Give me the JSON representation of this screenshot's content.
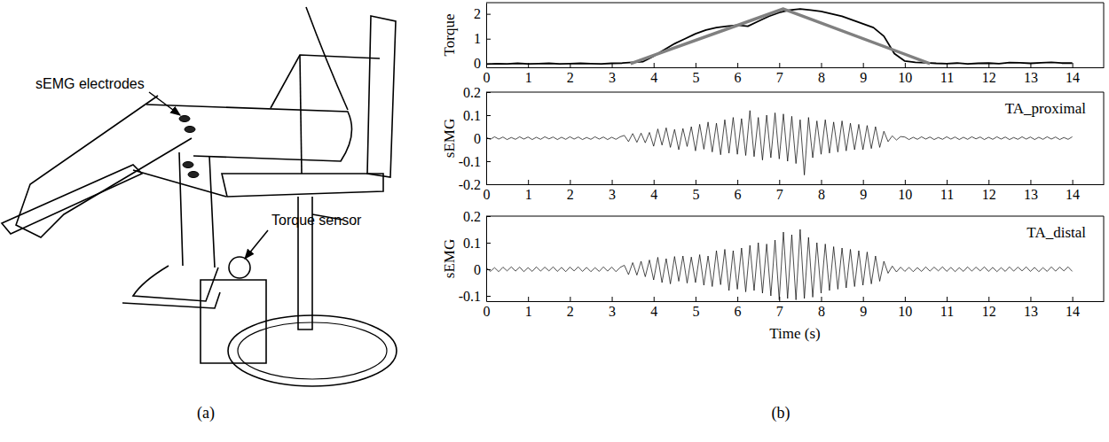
{
  "figure": {
    "panel_labels": [
      "(a)",
      "(b)"
    ]
  },
  "illustration": {
    "labels": [
      "sEMG electrodes",
      "Torque sensor"
    ]
  },
  "chart_data": [
    {
      "type": "line",
      "y_label": "Torque",
      "xlim": [
        0,
        14.75
      ],
      "ylim": [
        -0.15,
        2.45
      ],
      "xticks": [
        0,
        1,
        2,
        3,
        4,
        5,
        6,
        7,
        8,
        9,
        10,
        11,
        12,
        13,
        14
      ],
      "yticks": [
        0,
        1,
        2
      ],
      "series": [
        {
          "color": "#000000",
          "x": [
            0,
            0.25,
            0.5,
            0.75,
            1,
            1.25,
            1.5,
            1.75,
            2,
            2.25,
            2.5,
            2.75,
            3,
            3.25,
            3.5,
            3.75,
            4,
            4.25,
            4.5,
            4.75,
            5,
            5.25,
            5.5,
            5.75,
            6,
            6.25,
            6.5,
            6.75,
            7,
            7.25,
            7.5,
            7.75,
            8,
            8.25,
            8.5,
            8.75,
            9,
            9.25,
            9.5,
            9.75,
            10,
            10.25,
            10.5,
            10.75,
            11,
            11.25,
            11.5,
            11.75,
            12,
            12.25,
            12.5,
            12.75,
            13,
            13.25,
            13.5,
            13.75,
            14
          ],
          "values": [
            -0.02,
            0,
            -0.01,
            0.01,
            -0.01,
            0,
            0.01,
            -0.01,
            0,
            0.01,
            0,
            -0.01,
            0.01,
            0.02,
            0.05,
            0.08,
            0.3,
            0.55,
            0.8,
            1.0,
            1.2,
            1.35,
            1.45,
            1.5,
            1.55,
            1.5,
            1.7,
            1.9,
            2.05,
            2.15,
            2.2,
            2.15,
            2.1,
            2.0,
            1.9,
            1.75,
            1.6,
            1.45,
            1.1,
            0.4,
            0.1,
            0.05,
            0.03,
            0.01,
            0,
            0.02,
            -0.01,
            0.01,
            0.02,
            0,
            0.04,
            0.03,
            0.01,
            0.03,
            0.05,
            0.02,
            0.02
          ]
        },
        {
          "color": "#808080",
          "x": [
            3.45,
            7.1,
            10.6
          ],
          "values": [
            0,
            2.2,
            0
          ]
        }
      ]
    },
    {
      "type": "line",
      "y_label": "sEMG",
      "annotation": "TA_proximal",
      "xlim": [
        0,
        14.75
      ],
      "ylim": [
        -0.2,
        0.2
      ],
      "xticks": [
        0,
        1,
        2,
        3,
        4,
        5,
        6,
        7,
        8,
        9,
        10,
        11,
        12,
        13,
        14
      ],
      "yticks": [
        -0.2,
        -0.1,
        0,
        0.1,
        0.2
      ],
      "series": [
        {
          "color": "#000000",
          "x": [
            0,
            0.1,
            0.2,
            0.3,
            0.4,
            0.5,
            0.6,
            0.7,
            0.8,
            0.9,
            1,
            1.1,
            1.2,
            1.3,
            1.4,
            1.5,
            1.6,
            1.7,
            1.8,
            1.9,
            2,
            2.1,
            2.2,
            2.3,
            2.4,
            2.5,
            2.6,
            2.7,
            2.8,
            2.9,
            3,
            3.1,
            3.2,
            3.3,
            3.4,
            3.5,
            3.6,
            3.7,
            3.8,
            3.9,
            4,
            4.1,
            4.2,
            4.3,
            4.4,
            4.5,
            4.6,
            4.7,
            4.8,
            4.9,
            5,
            5.1,
            5.2,
            5.3,
            5.4,
            5.5,
            5.6,
            5.7,
            5.8,
            5.9,
            6,
            6.1,
            6.2,
            6.3,
            6.4,
            6.5,
            6.6,
            6.7,
            6.8,
            6.9,
            7,
            7.1,
            7.2,
            7.3,
            7.4,
            7.5,
            7.6,
            7.7,
            7.8,
            7.9,
            8,
            8.1,
            8.2,
            8.3,
            8.4,
            8.5,
            8.6,
            8.7,
            8.8,
            8.9,
            9,
            9.1,
            9.2,
            9.3,
            9.4,
            9.5,
            9.6,
            9.7,
            9.8,
            9.9,
            10,
            10.1,
            10.2,
            10.3,
            10.4,
            10.5,
            10.6,
            10.7,
            10.8,
            10.9,
            11,
            11.1,
            11.2,
            11.3,
            11.4,
            11.5,
            11.6,
            11.7,
            11.8,
            11.9,
            12,
            12.1,
            12.2,
            12.3,
            12.4,
            12.5,
            12.6,
            12.7,
            12.8,
            12.9,
            13,
            13.1,
            13.2,
            13.3,
            13.4,
            13.5,
            13.6,
            13.7,
            13.8,
            13.9,
            14
          ],
          "values": [
            0.004,
            -0.005,
            0.006,
            -0.004,
            0.005,
            -0.006,
            0.003,
            -0.005,
            0.006,
            -0.004,
            0.005,
            -0.006,
            0.004,
            -0.005,
            0.006,
            -0.003,
            0.005,
            -0.006,
            0.004,
            -0.005,
            0.006,
            -0.004,
            0.005,
            -0.006,
            0.003,
            -0.005,
            0.006,
            -0.004,
            0.005,
            -0.006,
            0.004,
            -0.005,
            0.006,
            0.012,
            -0.015,
            0.02,
            -0.018,
            0.022,
            -0.02,
            0.025,
            -0.035,
            0.04,
            -0.03,
            0.045,
            -0.04,
            0.038,
            -0.05,
            0.042,
            -0.036,
            0.05,
            -0.055,
            0.06,
            -0.048,
            0.07,
            -0.06,
            0.065,
            -0.072,
            0.08,
            -0.065,
            0.09,
            -0.07,
            0.085,
            -0.075,
            0.12,
            -0.08,
            0.09,
            -0.095,
            0.1,
            -0.085,
            0.11,
            -0.09,
            0.105,
            -0.1,
            0.095,
            -0.11,
            0.08,
            -0.16,
            0.09,
            -0.085,
            0.075,
            -0.07,
            0.08,
            -0.065,
            0.07,
            -0.06,
            0.075,
            -0.055,
            0.065,
            -0.05,
            0.06,
            -0.05,
            0.055,
            -0.045,
            0.05,
            -0.04,
            0.03,
            -0.015,
            0.01,
            -0.008,
            0.007,
            0.005,
            -0.006,
            0.004,
            -0.005,
            0.006,
            -0.004,
            0.005,
            -0.006,
            0.003,
            -0.005,
            0.006,
            -0.004,
            0.005,
            -0.006,
            0.004,
            -0.005,
            0.006,
            -0.003,
            0.005,
            -0.006,
            0.004,
            -0.005,
            0.006,
            -0.004,
            0.005,
            -0.006,
            0.003,
            -0.005,
            0.006,
            -0.004,
            0.005,
            -0.006,
            0.004,
            -0.005,
            0.006,
            -0.004,
            0.005,
            -0.006,
            0.003,
            -0.005,
            0.006
          ]
        }
      ]
    },
    {
      "type": "line",
      "y_label": "sEMG",
      "annotation": "TA_distal",
      "x_label": "Time (s)",
      "xlim": [
        0,
        14.75
      ],
      "ylim": [
        -0.12,
        0.2
      ],
      "xticks": [
        0,
        1,
        2,
        3,
        4,
        5,
        6,
        7,
        8,
        9,
        10,
        11,
        12,
        13,
        14
      ],
      "yticks": [
        -0.1,
        0,
        0.1,
        0.2
      ],
      "series": [
        {
          "color": "#000000",
          "x": [
            0,
            0.1,
            0.2,
            0.3,
            0.4,
            0.5,
            0.6,
            0.7,
            0.8,
            0.9,
            1,
            1.1,
            1.2,
            1.3,
            1.4,
            1.5,
            1.6,
            1.7,
            1.8,
            1.9,
            2,
            2.1,
            2.2,
            2.3,
            2.4,
            2.5,
            2.6,
            2.7,
            2.8,
            2.9,
            3,
            3.1,
            3.2,
            3.3,
            3.4,
            3.5,
            3.6,
            3.7,
            3.8,
            3.9,
            4,
            4.1,
            4.2,
            4.3,
            4.4,
            4.5,
            4.6,
            4.7,
            4.8,
            4.9,
            5,
            5.1,
            5.2,
            5.3,
            5.4,
            5.5,
            5.6,
            5.7,
            5.8,
            5.9,
            6,
            6.1,
            6.2,
            6.3,
            6.4,
            6.5,
            6.6,
            6.7,
            6.8,
            6.9,
            7,
            7.1,
            7.2,
            7.3,
            7.4,
            7.5,
            7.6,
            7.7,
            7.8,
            7.9,
            8,
            8.1,
            8.2,
            8.3,
            8.4,
            8.5,
            8.6,
            8.7,
            8.8,
            8.9,
            9,
            9.1,
            9.2,
            9.3,
            9.4,
            9.5,
            9.6,
            9.7,
            9.8,
            9.9,
            10,
            10.1,
            10.2,
            10.3,
            10.4,
            10.5,
            10.6,
            10.7,
            10.8,
            10.9,
            11,
            11.1,
            11.2,
            11.3,
            11.4,
            11.5,
            11.6,
            11.7,
            11.8,
            11.9,
            12,
            12.1,
            12.2,
            12.3,
            12.4,
            12.5,
            12.6,
            12.7,
            12.8,
            12.9,
            13,
            13.1,
            13.2,
            13.3,
            13.4,
            13.5,
            13.6,
            13.7,
            13.8,
            13.9,
            14
          ],
          "values": [
            0.007,
            -0.008,
            0.006,
            -0.009,
            0.008,
            -0.006,
            0.009,
            -0.007,
            0.008,
            -0.009,
            0.006,
            -0.008,
            0.009,
            -0.007,
            0.008,
            -0.006,
            0.009,
            -0.008,
            0.007,
            -0.009,
            0.008,
            -0.006,
            0.009,
            -0.008,
            0.007,
            -0.009,
            0.006,
            -0.008,
            0.009,
            -0.007,
            0.008,
            -0.009,
            0.007,
            0.015,
            -0.02,
            0.025,
            -0.022,
            0.03,
            -0.028,
            0.035,
            -0.04,
            0.045,
            -0.05,
            0.04,
            -0.055,
            0.048,
            -0.045,
            0.05,
            -0.052,
            0.046,
            -0.05,
            0.055,
            -0.06,
            0.05,
            -0.065,
            0.07,
            -0.058,
            0.075,
            -0.08,
            0.07,
            -0.075,
            0.08,
            -0.085,
            0.09,
            -0.08,
            0.1,
            -0.09,
            0.095,
            -0.1,
            0.11,
            -0.115,
            0.14,
            -0.11,
            0.13,
            -0.115,
            0.15,
            -0.11,
            0.12,
            -0.105,
            0.1,
            -0.09,
            0.095,
            -0.08,
            0.085,
            -0.075,
            0.08,
            -0.07,
            0.075,
            -0.065,
            0.07,
            -0.06,
            0.065,
            -0.055,
            0.05,
            -0.045,
            0.03,
            -0.015,
            0.012,
            -0.01,
            0.008,
            -0.008,
            0.007,
            -0.009,
            0.006,
            -0.008,
            0.009,
            -0.007,
            0.008,
            -0.006,
            0.009,
            -0.008,
            0.007,
            -0.009,
            0.006,
            -0.008,
            0.009,
            -0.007,
            0.008,
            -0.006,
            0.009,
            -0.008,
            0.007,
            -0.009,
            0.006,
            -0.008,
            0.009,
            -0.007,
            0.008,
            -0.006,
            0.009,
            -0.008,
            0.007,
            -0.009,
            0.006,
            -0.008,
            0.009,
            -0.007,
            0.008,
            -0.006,
            0.009,
            -0.008
          ]
        }
      ]
    }
  ]
}
